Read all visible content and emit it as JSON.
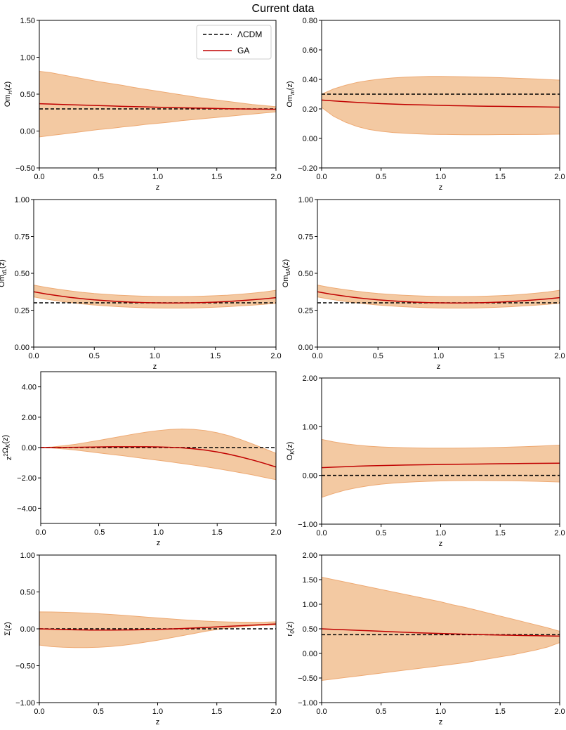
{
  "figure": {
    "title": "Current data",
    "x_values": [
      0,
      0.1,
      0.2,
      0.3,
      0.4,
      0.5,
      0.6,
      0.7,
      0.8,
      0.9,
      1.0,
      1.1,
      1.2,
      1.3,
      1.4,
      1.5,
      1.6,
      1.7,
      1.8,
      1.9,
      2.0
    ]
  },
  "legend": {
    "lcdm_label": "ΛCDM",
    "ga_label": "GA"
  },
  "colors": {
    "band_fill": "#f3c9a2",
    "band_edge": "#eeaa74",
    "ga_line": "#c00000",
    "lcdm_line": "#000000"
  },
  "chart_data": [
    {
      "id": "omh",
      "type": "line",
      "ylabel": "Om_H(z)",
      "xlabel": "z",
      "ylim": [
        -0.5,
        1.5
      ],
      "yticks": [
        -0.5,
        0,
        0.5,
        1.0,
        1.5
      ],
      "yticklabels": [
        "−0.50",
        "0.00",
        "0.50",
        "1.00",
        "1.50"
      ],
      "xticks": [
        0,
        0.5,
        1.0,
        1.5,
        2.0
      ],
      "xticklabels": [
        "0.0",
        "0.5",
        "1.0",
        "1.5",
        "2.0"
      ],
      "lcdm": 0.3,
      "ga": [
        0.37,
        0.365,
        0.36,
        0.355,
        0.35,
        0.345,
        0.34,
        0.335,
        0.331,
        0.327,
        0.323,
        0.319,
        0.315,
        0.312,
        0.309,
        0.306,
        0.303,
        0.3,
        0.298,
        0.296,
        0.295
      ],
      "upper": [
        0.81,
        0.79,
        0.76,
        0.73,
        0.7,
        0.67,
        0.645,
        0.62,
        0.59,
        0.565,
        0.54,
        0.515,
        0.49,
        0.465,
        0.44,
        0.42,
        0.4,
        0.38,
        0.36,
        0.345,
        0.33
      ],
      "lower": [
        -0.08,
        -0.06,
        -0.04,
        -0.02,
        0,
        0.02,
        0.035,
        0.055,
        0.07,
        0.09,
        0.105,
        0.12,
        0.14,
        0.155,
        0.17,
        0.185,
        0.2,
        0.215,
        0.23,
        0.245,
        0.26
      ]
    },
    {
      "id": "omm",
      "type": "line",
      "ylabel": "Om_m(z)",
      "xlabel": "z",
      "ylim": [
        -0.2,
        0.8
      ],
      "yticks": [
        -0.2,
        0,
        0.2,
        0.4,
        0.6,
        0.8
      ],
      "yticklabels": [
        "−0.20",
        "0.00",
        "0.20",
        "0.40",
        "0.60",
        "0.80"
      ],
      "xticks": [
        0,
        0.5,
        1.0,
        1.5,
        2.0
      ],
      "xticklabels": [
        "0.0",
        "0.5",
        "1.0",
        "1.5",
        "2.0"
      ],
      "lcdm": 0.3,
      "ga": [
        0.26,
        0.254,
        0.249,
        0.244,
        0.24,
        0.236,
        0.233,
        0.23,
        0.228,
        0.226,
        0.224,
        0.222,
        0.221,
        0.219,
        0.218,
        0.217,
        0.216,
        0.215,
        0.214,
        0.213,
        0.212
      ],
      "upper": [
        0.3,
        0.335,
        0.36,
        0.38,
        0.393,
        0.403,
        0.41,
        0.415,
        0.418,
        0.42,
        0.42,
        0.419,
        0.418,
        0.416,
        0.414,
        0.412,
        0.409,
        0.406,
        0.403,
        0.399,
        0.395
      ],
      "lower": [
        0.21,
        0.15,
        0.11,
        0.08,
        0.06,
        0.048,
        0.04,
        0.035,
        0.031,
        0.028,
        0.027,
        0.026,
        0.025,
        0.025,
        0.025,
        0.026,
        0.026,
        0.027,
        0.027,
        0.028,
        0.029
      ]
    },
    {
      "id": "omdl",
      "type": "line",
      "ylabel": "Om_dL(z)",
      "xlabel": "z",
      "ylim": [
        0,
        1.0
      ],
      "yticks": [
        0,
        0.25,
        0.5,
        0.75,
        1.0
      ],
      "yticklabels": [
        "0.00",
        "0.25",
        "0.50",
        "0.75",
        "1.00"
      ],
      "xticks": [
        0,
        0.5,
        1.0,
        1.5,
        2.0
      ],
      "xticklabels": [
        "0.0",
        "0.5",
        "1.0",
        "1.5",
        "2.0"
      ],
      "lcdm": 0.3,
      "ga": [
        0.375,
        0.36,
        0.348,
        0.337,
        0.328,
        0.32,
        0.314,
        0.309,
        0.305,
        0.302,
        0.3,
        0.299,
        0.299,
        0.3,
        0.302,
        0.305,
        0.309,
        0.314,
        0.32,
        0.327,
        0.335
      ],
      "upper": [
        0.42,
        0.405,
        0.392,
        0.381,
        0.371,
        0.363,
        0.357,
        0.352,
        0.348,
        0.345,
        0.343,
        0.342,
        0.342,
        0.343,
        0.345,
        0.348,
        0.352,
        0.358,
        0.365,
        0.373,
        0.385
      ],
      "lower": [
        0.34,
        0.325,
        0.313,
        0.302,
        0.293,
        0.285,
        0.279,
        0.274,
        0.27,
        0.267,
        0.265,
        0.264,
        0.264,
        0.265,
        0.267,
        0.27,
        0.274,
        0.279,
        0.284,
        0.29,
        0.297
      ]
    },
    {
      "id": "omda",
      "type": "line",
      "ylabel": "Om_dA(z)",
      "xlabel": "z",
      "ylim": [
        0,
        1.0
      ],
      "yticks": [
        0,
        0.25,
        0.5,
        0.75,
        1.0
      ],
      "yticklabels": [
        "0.00",
        "0.25",
        "0.50",
        "0.75",
        "1.00"
      ],
      "xticks": [
        0,
        0.5,
        1.0,
        1.5,
        2.0
      ],
      "xticklabels": [
        "0.0",
        "0.5",
        "1.0",
        "1.5",
        "2.0"
      ],
      "lcdm": 0.3,
      "ga": [
        0.375,
        0.36,
        0.348,
        0.337,
        0.328,
        0.32,
        0.314,
        0.309,
        0.305,
        0.302,
        0.3,
        0.299,
        0.299,
        0.3,
        0.302,
        0.305,
        0.309,
        0.314,
        0.32,
        0.327,
        0.335
      ],
      "upper": [
        0.42,
        0.405,
        0.392,
        0.381,
        0.371,
        0.363,
        0.357,
        0.352,
        0.348,
        0.345,
        0.343,
        0.342,
        0.342,
        0.343,
        0.345,
        0.348,
        0.352,
        0.358,
        0.365,
        0.373,
        0.385
      ],
      "lower": [
        0.34,
        0.325,
        0.313,
        0.302,
        0.293,
        0.285,
        0.279,
        0.274,
        0.27,
        0.267,
        0.265,
        0.264,
        0.264,
        0.265,
        0.267,
        0.27,
        0.274,
        0.279,
        0.284,
        0.29,
        0.297
      ]
    },
    {
      "id": "z2ok",
      "type": "line",
      "ylabel": "z²Ω_K(z)",
      "xlabel": "z",
      "ylim": [
        -5,
        5
      ],
      "yticks": [
        -4,
        -2,
        0,
        2,
        4
      ],
      "yticklabels": [
        "−4.00",
        "−2.00",
        "0.00",
        "2.00",
        "4.00"
      ],
      "xticks": [
        0,
        0.5,
        1.0,
        1.5,
        2.0
      ],
      "xticklabels": [
        "0.0",
        "0.5",
        "1.0",
        "1.5",
        "2.0"
      ],
      "lcdm": 0,
      "ga": [
        0,
        0.003,
        0.01,
        0.02,
        0.03,
        0.04,
        0.05,
        0.05,
        0.05,
        0.05,
        0.04,
        0.02,
        -0.02,
        -0.08,
        -0.17,
        -0.29,
        -0.44,
        -0.62,
        -0.82,
        -1.04,
        -1.28
      ],
      "upper": [
        0,
        0.04,
        0.12,
        0.22,
        0.35,
        0.48,
        0.62,
        0.76,
        0.9,
        1.02,
        1.12,
        1.19,
        1.22,
        1.2,
        1.12,
        0.98,
        0.78,
        0.53,
        0.24,
        -0.07,
        -0.38
      ],
      "lower": [
        0,
        -0.03,
        -0.09,
        -0.17,
        -0.26,
        -0.36,
        -0.45,
        -0.54,
        -0.64,
        -0.74,
        -0.84,
        -0.94,
        -1.05,
        -1.16,
        -1.27,
        -1.39,
        -1.52,
        -1.66,
        -1.8,
        -1.96,
        -2.12
      ]
    },
    {
      "id": "ok",
      "type": "line",
      "ylabel": "O_K(z)",
      "xlabel": "z",
      "ylim": [
        -1,
        2
      ],
      "yticks": [
        -1,
        0,
        1,
        2
      ],
      "yticklabels": [
        "−1.00",
        "0.00",
        "1.00",
        "2.00"
      ],
      "xticks": [
        0,
        0.5,
        1.0,
        1.5,
        2.0
      ],
      "xticklabels": [
        "0.0",
        "0.5",
        "1.0",
        "1.5",
        "2.0"
      ],
      "lcdm": 0,
      "ga": [
        0.16,
        0.17,
        0.18,
        0.19,
        0.197,
        0.203,
        0.208,
        0.213,
        0.217,
        0.221,
        0.225,
        0.228,
        0.231,
        0.234,
        0.237,
        0.24,
        0.242,
        0.245,
        0.247,
        0.249,
        0.252
      ],
      "upper": [
        0.74,
        0.69,
        0.65,
        0.62,
        0.6,
        0.585,
        0.575,
        0.568,
        0.563,
        0.56,
        0.56,
        0.56,
        0.562,
        0.565,
        0.57,
        0.575,
        0.582,
        0.59,
        0.6,
        0.61,
        0.62
      ],
      "lower": [
        -0.45,
        -0.37,
        -0.3,
        -0.25,
        -0.21,
        -0.18,
        -0.158,
        -0.142,
        -0.13,
        -0.12,
        -0.113,
        -0.108,
        -0.105,
        -0.104,
        -0.105,
        -0.107,
        -0.11,
        -0.115,
        -0.12,
        -0.127,
        -0.135
      ]
    },
    {
      "id": "sigma",
      "type": "line",
      "ylabel": "Σ(z)",
      "xlabel": "z",
      "ylim": [
        -1,
        1
      ],
      "yticks": [
        -1,
        -0.5,
        0,
        0.5,
        1.0
      ],
      "yticklabels": [
        "−1.00",
        "−0.50",
        "0.00",
        "0.50",
        "1.00"
      ],
      "xticks": [
        0,
        0.5,
        1.0,
        1.5,
        2.0
      ],
      "xticklabels": [
        "0.0",
        "0.5",
        "1.0",
        "1.5",
        "2.0"
      ],
      "lcdm": 0,
      "ga": [
        0,
        -0.005,
        -0.01,
        -0.013,
        -0.016,
        -0.017,
        -0.017,
        -0.016,
        -0.014,
        -0.011,
        -0.007,
        -0.002,
        0.004,
        0.011,
        0.018,
        0.026,
        0.034,
        0.042,
        0.05,
        0.058,
        0.066
      ],
      "upper": [
        0.23,
        0.228,
        0.225,
        0.22,
        0.213,
        0.205,
        0.195,
        0.185,
        0.173,
        0.16,
        0.148,
        0.136,
        0.124,
        0.114,
        0.105,
        0.098,
        0.093,
        0.09,
        0.089,
        0.09,
        0.095
      ],
      "lower": [
        -0.22,
        -0.24,
        -0.25,
        -0.255,
        -0.255,
        -0.25,
        -0.24,
        -0.225,
        -0.205,
        -0.18,
        -0.155,
        -0.125,
        -0.095,
        -0.065,
        -0.035,
        -0.01,
        0.012,
        0.028,
        0.04,
        0.048,
        0.052
      ]
    },
    {
      "id": "r0",
      "type": "line",
      "ylabel": "r_0(z)",
      "xlabel": "z",
      "ylim": [
        -1,
        2
      ],
      "yticks": [
        -1,
        -0.5,
        0,
        0.5,
        1.0,
        1.5,
        2.0
      ],
      "yticklabels": [
        "−1.00",
        "−0.50",
        "0.00",
        "0.50",
        "1.00",
        "1.50",
        "2.00"
      ],
      "xticks": [
        0,
        0.5,
        1.0,
        1.5,
        2.0
      ],
      "xticklabels": [
        "0.0",
        "0.5",
        "1.0",
        "1.5",
        "2.0"
      ],
      "lcdm": 0.38,
      "ga": [
        0.5,
        0.49,
        0.48,
        0.47,
        0.46,
        0.45,
        0.44,
        0.43,
        0.42,
        0.412,
        0.405,
        0.398,
        0.391,
        0.385,
        0.379,
        0.374,
        0.369,
        0.364,
        0.36,
        0.356,
        0.352
      ],
      "upper": [
        1.55,
        1.5,
        1.45,
        1.4,
        1.35,
        1.3,
        1.25,
        1.2,
        1.15,
        1.1,
        1.05,
        0.99,
        0.94,
        0.88,
        0.82,
        0.76,
        0.7,
        0.64,
        0.58,
        0.52,
        0.45
      ],
      "lower": [
        -0.55,
        -0.52,
        -0.49,
        -0.46,
        -0.43,
        -0.4,
        -0.37,
        -0.34,
        -0.31,
        -0.28,
        -0.25,
        -0.22,
        -0.19,
        -0.15,
        -0.11,
        -0.07,
        -0.03,
        0.02,
        0.07,
        0.13,
        0.22
      ]
    }
  ]
}
